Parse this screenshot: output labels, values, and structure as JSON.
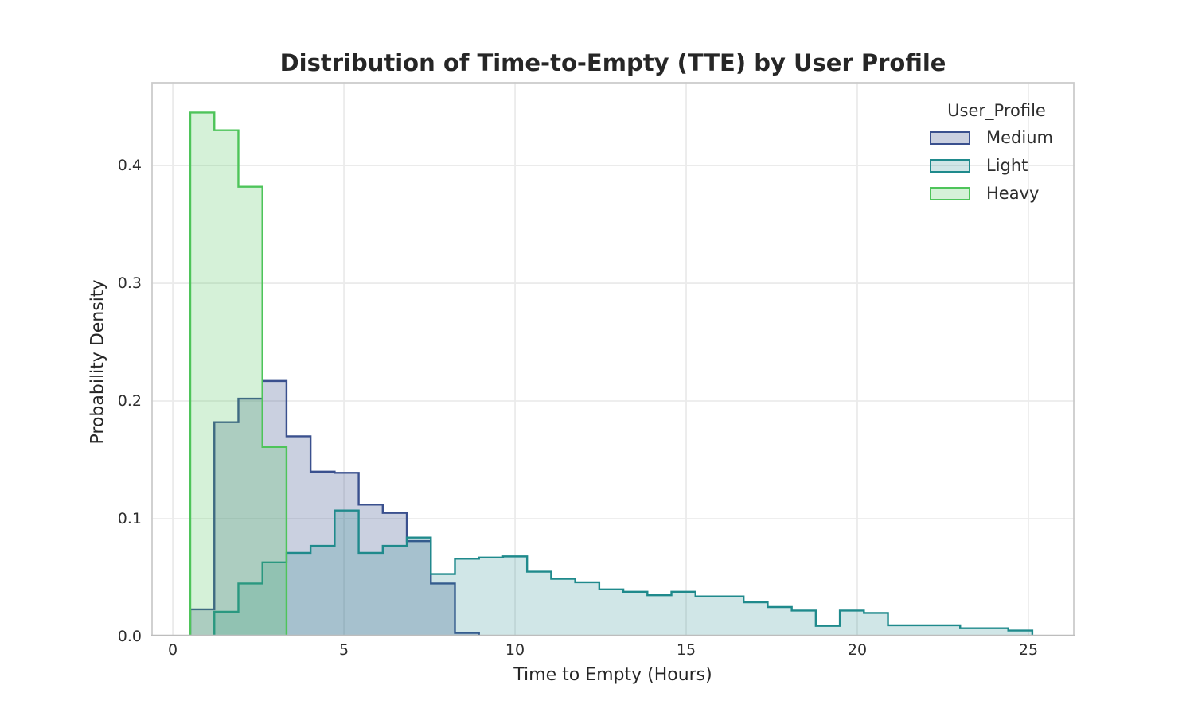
{
  "axes": {
    "xlabel": "Time to Empty (Hours)",
    "ylabel": "Probability Density",
    "x_ticks": [
      0,
      5,
      10,
      15,
      20,
      25
    ],
    "y_ticks": [
      0.0,
      0.1,
      0.2,
      0.3,
      0.4
    ],
    "x_tick_labels": [
      "0",
      "5",
      "10",
      "15",
      "20",
      "25"
    ],
    "y_tick_labels": [
      "0.0",
      "0.1",
      "0.2",
      "0.3",
      "0.4"
    ]
  },
  "legend": {
    "title": "User_Profile",
    "entries": [
      {
        "label": "Medium",
        "edge": "#3a508e",
        "fill": "rgba(58,80,142,0.27)"
      },
      {
        "label": "Light",
        "edge": "#1f8a8c",
        "fill": "rgba(31,138,140,0.21)"
      },
      {
        "label": "Heavy",
        "edge": "#4ec45a",
        "fill": "rgba(78,196,90,0.24)"
      }
    ]
  },
  "style": {
    "grid_color": "#ebebeb",
    "spine_color": "#cccccc",
    "bottom_spine_color": "#bdbdbd",
    "edge_width": 2.4
  },
  "chart_data": {
    "type": "histogram",
    "element": "step",
    "title": "Distribution of Time-to-Empty (TTE) by User Profile",
    "xlabel": "Time to Empty (Hours)",
    "ylabel": "Probability Density",
    "xlim": [
      -0.63,
      26.35
    ],
    "ylim": [
      0,
      0.471
    ],
    "grid": true,
    "legend_position": "upper right",
    "bin_start": 0.51,
    "bin_width": 0.703,
    "series": [
      {
        "name": "Medium",
        "start_bin": 0,
        "heights": [
          0.023,
          0.182,
          0.202,
          0.217,
          0.17,
          0.14,
          0.139,
          0.112,
          0.105,
          0.081,
          0.045,
          0.003
        ]
      },
      {
        "name": "Light",
        "start_bin": 1,
        "heights": [
          0.021,
          0.045,
          0.063,
          0.071,
          0.077,
          0.107,
          0.071,
          0.077,
          0.084,
          0.053,
          0.066,
          0.067,
          0.068,
          0.055,
          0.049,
          0.046,
          0.04,
          0.038,
          0.035,
          0.038,
          0.034,
          0.034,
          0.029,
          0.025,
          0.022,
          0.009,
          0.022,
          0.02,
          0.0095,
          0.0095,
          0.0095,
          0.007,
          0.007,
          0.005
        ]
      },
      {
        "name": "Heavy",
        "start_bin": 0,
        "heights": [
          0.445,
          0.43,
          0.382,
          0.161
        ]
      }
    ]
  }
}
